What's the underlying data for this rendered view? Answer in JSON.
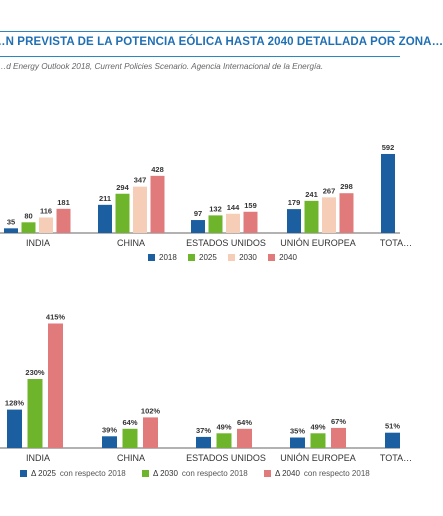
{
  "header": {
    "title": "…N PREVISTA DE LA POTENCIA EÓLICA HASTA 2040 DETALLADA POR ZONA…",
    "source": "…d Energy Outlook 2018, Current Policies Scenario. Agencia Internacional de la Energía."
  },
  "colors": {
    "c2018": "#1b5fa0",
    "c2025": "#6fb52c",
    "c2030": "#f6cdb6",
    "c2040": "#e07a7b",
    "title": "#1f6fb5"
  },
  "chart_data": [
    {
      "type": "bar",
      "categories": [
        "INDIA",
        "CHINA",
        "ESTADOS UNIDOS",
        "UNIÓN EUROPEA",
        "TOTA…"
      ],
      "series": [
        {
          "name": "2018",
          "values": [
            35,
            211,
            97,
            179,
            592
          ]
        },
        {
          "name": "2025",
          "values": [
            80,
            294,
            132,
            241,
            null
          ]
        },
        {
          "name": "2030",
          "values": [
            116,
            347,
            144,
            267,
            null
          ]
        },
        {
          "name": "2040",
          "values": [
            181,
            428,
            159,
            298,
            null
          ]
        }
      ],
      "labels": [
        [
          "35",
          "211",
          "97",
          "179",
          "592"
        ],
        [
          "80",
          "294",
          "132",
          "241",
          ""
        ],
        [
          "116",
          "347",
          "144",
          "267",
          ""
        ],
        [
          "181",
          "428",
          "159",
          "298",
          ""
        ]
      ],
      "legend": [
        "2018",
        "2025",
        "2030",
        "2040"
      ]
    },
    {
      "type": "bar",
      "categories": [
        "INDIA",
        "CHINA",
        "ESTADOS UNIDOS",
        "UNIÓN EUROPEA",
        "TOTA…"
      ],
      "series": [
        {
          "name": "Δ 2025 con respecto 2018",
          "values": [
            128,
            39,
            37,
            35,
            51
          ]
        },
        {
          "name": "Δ 2030 con respecto 2018",
          "values": [
            230,
            64,
            49,
            49,
            null
          ]
        },
        {
          "name": "Δ 2040 con respecto 2018",
          "values": [
            415,
            102,
            64,
            67,
            null
          ]
        }
      ],
      "labels": [
        [
          "128%",
          "39%",
          "37%",
          "35%",
          "51%"
        ],
        [
          "230%",
          "64%",
          "49%",
          "49%",
          ""
        ],
        [
          "415%",
          "102%",
          "64%",
          "67%",
          ""
        ]
      ],
      "legend": [
        {
          "label": "Δ 2025",
          "suffix": "con respecto 2018"
        },
        {
          "label": "Δ 2030",
          "suffix": "con respecto 2018"
        },
        {
          "label": "Δ 2040",
          "suffix": "con respecto 2018"
        }
      ]
    }
  ]
}
